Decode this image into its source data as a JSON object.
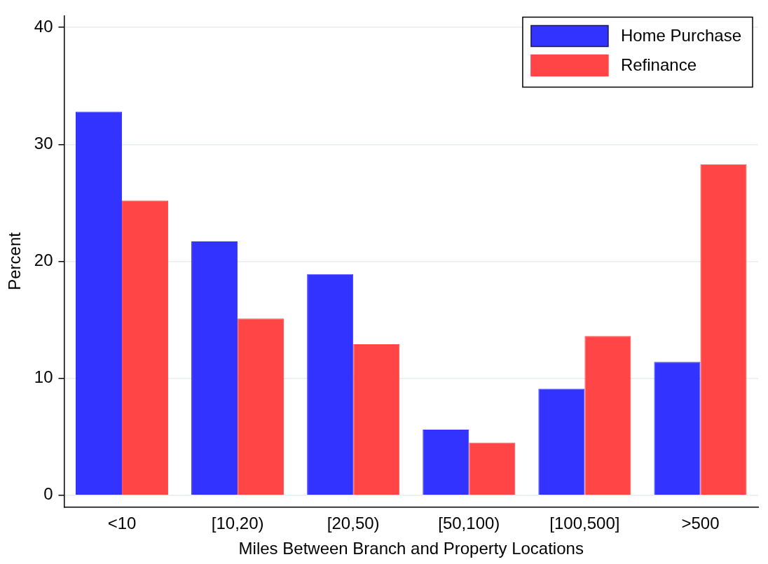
{
  "chart_data": {
    "type": "bar",
    "xlabel": "Miles Between Branch and Property Locations",
    "ylabel": "Percent",
    "categories": [
      "<10",
      "[10,20)",
      "[20,50)",
      "[50,100)",
      "[100,500]",
      ">500"
    ],
    "series": [
      {
        "name": "Home Purchase",
        "color": "#3333ff",
        "values": [
          32.8,
          21.7,
          18.9,
          5.6,
          9.1,
          11.4
        ]
      },
      {
        "name": "Refinance",
        "color": "#ff4545",
        "values": [
          25.2,
          15.1,
          12.9,
          4.5,
          13.6,
          28.3
        ]
      }
    ],
    "ylim": [
      -1,
      41
    ],
    "yticks": [
      0,
      10,
      20,
      30,
      40
    ],
    "grid": "y",
    "legend": "top right"
  }
}
